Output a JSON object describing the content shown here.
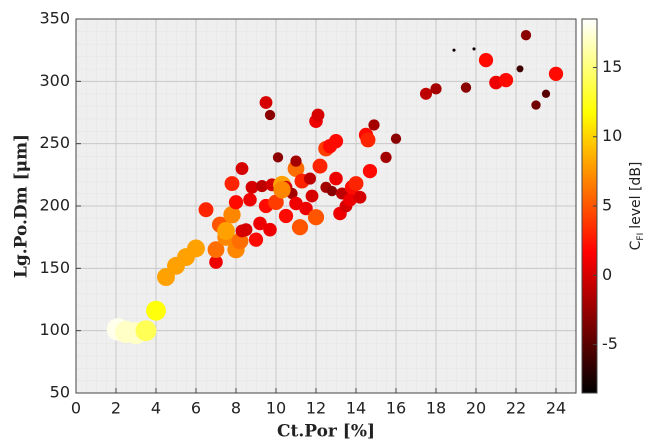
{
  "chart_data": {
    "type": "scatter",
    "x_label": "Ct.Por [%]",
    "y_label": "Lg.Po.Dm [μm]",
    "colorbar_label": "level [dB]",
    "colorbar_symbol": "C",
    "colorbar_subscript": "FI",
    "xlim": [
      0,
      25
    ],
    "ylim": [
      50,
      350
    ],
    "xticks": [
      0,
      2,
      4,
      6,
      8,
      10,
      12,
      14,
      16,
      18,
      20,
      22,
      24
    ],
    "yticks": [
      50,
      100,
      150,
      200,
      250,
      300,
      350
    ],
    "clim": [
      -8.5,
      18.5
    ],
    "cticks": [
      -5,
      0,
      5,
      10,
      15
    ],
    "colormap": "hot",
    "grid": true,
    "x": [
      2.1,
      2.5,
      3.0,
      3.5,
      4.0,
      4.5,
      5.0,
      5.5,
      6.0,
      6.5,
      7.0,
      7.0,
      7.2,
      7.5,
      7.5,
      7.8,
      7.8,
      8.0,
      8.2,
      8.0,
      8.3,
      8.5,
      8.7,
      8.8,
      9.0,
      9.2,
      9.3,
      9.5,
      9.7,
      9.8,
      10.0,
      10.1,
      10.3,
      10.5,
      10.5,
      10.8,
      11.0,
      11.0,
      11.2,
      11.3,
      11.5,
      11.7,
      11.8,
      12.0,
      12.0,
      12.1,
      12.2,
      12.5,
      12.5,
      12.7,
      12.8,
      13.0,
      13.0,
      13.2,
      13.3,
      13.5,
      13.7,
      13.8,
      14.0,
      14.2,
      14.5,
      14.6,
      14.7,
      14.9,
      15.5,
      16.0,
      9.5,
      9.7,
      10.1,
      11.0,
      8.3,
      10.3,
      17.5,
      18.0,
      18.9,
      19.5,
      19.9,
      20.5,
      21.0,
      21.5,
      22.2,
      22.5,
      23.0,
      23.5,
      24.0
    ],
    "values": [
      101,
      99,
      98,
      100,
      116,
      143,
      152,
      159,
      166,
      197,
      155,
      165,
      185,
      175,
      180,
      193,
      218,
      165,
      172,
      203,
      230,
      181,
      205,
      215,
      173,
      186,
      216,
      200,
      181,
      217,
      203,
      214,
      217,
      192,
      215,
      210,
      202,
      230,
      183,
      220,
      198,
      222,
      208,
      268,
      191,
      273,
      232,
      215,
      246,
      248,
      212,
      222,
      252,
      194,
      210,
      200,
      205,
      215,
      218,
      207,
      257,
      253,
      228,
      265,
      239,
      254,
      283,
      273,
      239,
      236,
      180,
      213,
      290,
      294,
      325,
      295,
      326,
      317,
      299,
      301,
      310,
      337,
      281,
      290,
      306
    ],
    "color_values": [
      18,
      17,
      17,
      14,
      12,
      8,
      8,
      8,
      8,
      3,
      1,
      6,
      5,
      7,
      8,
      7,
      3,
      7,
      6,
      2,
      0,
      0,
      1,
      0,
      2,
      1,
      -1,
      2,
      1,
      0,
      4,
      -3,
      8,
      2,
      0,
      -2,
      1,
      6,
      5,
      3,
      1,
      -1,
      0,
      1,
      5,
      0,
      3,
      -2,
      4,
      2,
      -3,
      1,
      2,
      1,
      -1,
      0,
      1,
      2,
      3,
      0,
      2,
      3,
      2,
      -2,
      -2,
      -3,
      0,
      -3,
      -3,
      -2,
      0,
      7,
      -1,
      -2,
      -8,
      -3,
      -8,
      2,
      1,
      2,
      -6,
      -3,
      -4,
      -5,
      2
    ]
  }
}
